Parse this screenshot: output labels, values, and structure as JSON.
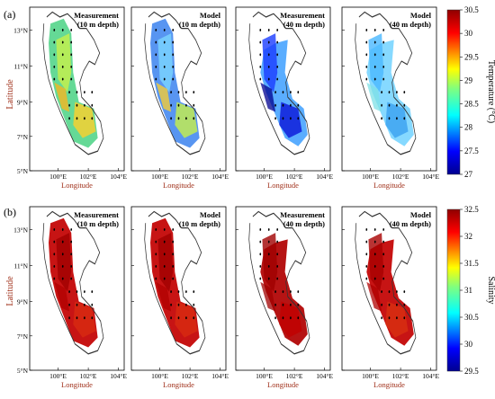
{
  "figure": {
    "panel_labels": [
      "(a)",
      "(b)"
    ]
  },
  "chart_data": [
    {
      "type": "heatmap",
      "panel": "(a)",
      "ylabel": "Latitude",
      "xlabel": "Longitude",
      "x_ticks": [
        "100°E",
        "102°E",
        "104°E"
      ],
      "y_ticks": [
        "13°N",
        "11°N",
        "9°N",
        "7°N",
        "5°N"
      ],
      "xlim": [
        99,
        104
      ],
      "ylim": [
        5,
        14
      ],
      "subplots": [
        {
          "title_line1": "Measurement",
          "title_line2": "(10 m depth)",
          "field": "temp_meas_10"
        },
        {
          "title_line1": "Model",
          "title_line2": "(10 m depth)",
          "field": "temp_model_10"
        },
        {
          "title_line1": "Measurement",
          "title_line2": "(40 m depth)",
          "field": "temp_meas_40"
        },
        {
          "title_line1": "Model",
          "title_line2": "(40 m depth)",
          "field": "temp_model_40"
        }
      ],
      "colorbar": {
        "label": "Temperature (°C)",
        "ticks": [
          "30.5",
          "30",
          "29.5",
          "29",
          "28.5",
          "28",
          "27.5",
          "27"
        ],
        "range": [
          27,
          30.5
        ]
      }
    },
    {
      "type": "heatmap",
      "panel": "(b)",
      "ylabel": "Latitude",
      "xlabel": "Longitude",
      "x_ticks": [
        "100°E",
        "102°E",
        "104°E"
      ],
      "y_ticks": [
        "13°N",
        "11°N",
        "9°N",
        "7°N",
        "5°N"
      ],
      "xlim": [
        99,
        104
      ],
      "ylim": [
        5,
        14
      ],
      "subplots": [
        {
          "title_line1": "Measurement",
          "title_line2": "(10 m depth)",
          "field": "sal_meas_10"
        },
        {
          "title_line1": "Model",
          "title_line2": "(10 m depth)",
          "field": "sal_model_10"
        },
        {
          "title_line1": "Measurement",
          "title_line2": "(40 m depth)",
          "field": "sal_meas_40"
        },
        {
          "title_line1": "Model",
          "title_line2": "(40 m depth)",
          "field": "sal_model_40"
        }
      ],
      "colorbar": {
        "label": "Salinity",
        "ticks": [
          "32.5",
          "32",
          "31.5",
          "31",
          "30.5",
          "30",
          "29.5"
        ],
        "range": [
          29.5,
          32.5
        ]
      }
    }
  ]
}
